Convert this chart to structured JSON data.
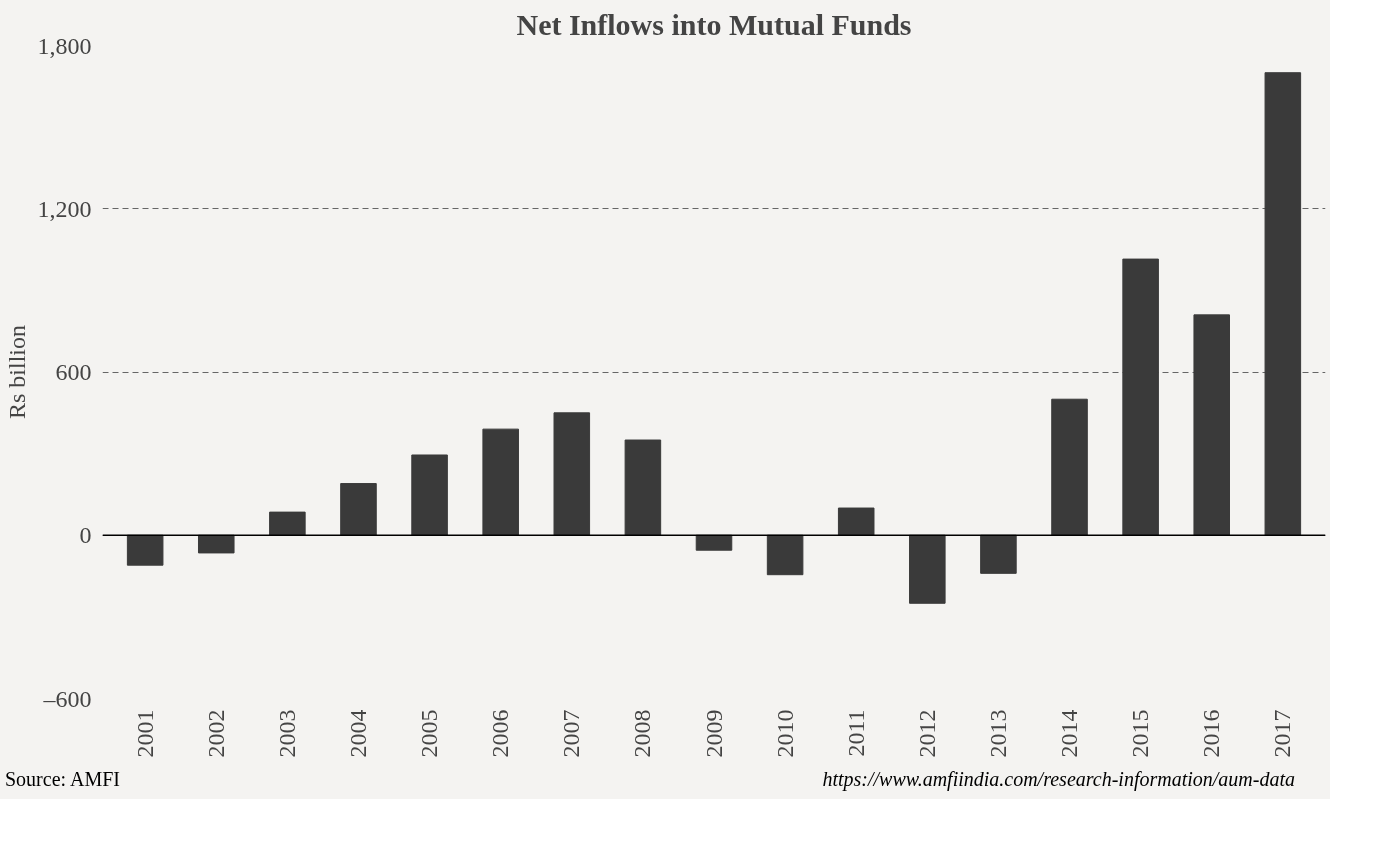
{
  "chart_data": {
    "type": "bar",
    "title": "Net Inflows into Mutual Funds",
    "ylabel": "Rs billion",
    "categories": [
      "2001",
      "2002",
      "2003",
      "2004",
      "2005",
      "2006",
      "2007",
      "2008",
      "2009",
      "2010",
      "2011",
      "2012",
      "2013",
      "2014",
      "2015",
      "2016",
      "2017"
    ],
    "values": [
      -110,
      -65,
      85,
      190,
      295,
      390,
      450,
      350,
      -55,
      -145,
      100,
      -250,
      -140,
      500,
      1015,
      810,
      1700
    ],
    "color": "#3a3a3a",
    "ylim": [
      -600,
      1800
    ],
    "yticks": [
      {
        "value": -600,
        "label": "–600"
      },
      0,
      {
        "value": 600,
        "label": "600"
      },
      {
        "value": 1200,
        "label": "1,200"
      },
      {
        "value": 1800,
        "label": "1,800"
      }
    ],
    "grid": "y",
    "line_style": "dashed",
    "ref_lines": [
      {
        "axis": "y",
        "value": 0,
        "color": "#000000"
      }
    ],
    "annotations": [
      "Source: AMFI",
      "https://www.amfiindia.com/research-information/aum-data"
    ]
  }
}
